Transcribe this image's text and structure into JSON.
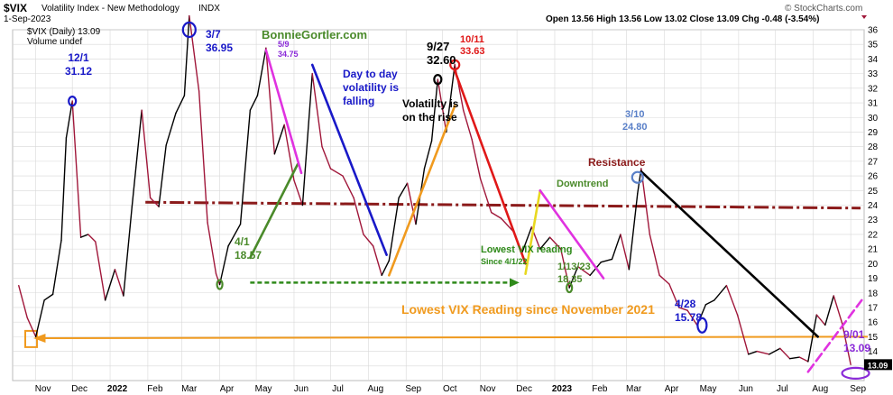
{
  "header": {
    "symbol": "$VIX",
    "name": "Volatility Index - New Methodology",
    "exchange": "INDX",
    "date": "1-Sep-2023",
    "copyright": "© StockCharts.com",
    "ohlc": "Open 13.56  High 13.56  Low 13.02  Close 13.09  Chg -0.48 (-3.54%)",
    "legend_series": "$VIX (Daily) 13.09",
    "legend_volume": "Volume undef"
  },
  "colors": {
    "price_up": "#000000",
    "price_down": "#a0173a",
    "resistance": "#8b1a1a",
    "support": "#f0a020",
    "blue": "#1919c8",
    "green": "#4a8a2a",
    "magenta": "#e032e0",
    "red": "#e01818",
    "orange": "#f09a1e",
    "black": "#000000",
    "dotted": "#2f8a1a",
    "purple": "#8a2ad8",
    "grid": "#d8d8d8"
  },
  "chart_data": {
    "type": "line",
    "title": "$VIX Volatility Index - New Methodology INDX",
    "ylim": [
      12,
      36
    ],
    "y_ticks": [
      13,
      14,
      15,
      16,
      17,
      18,
      19,
      20,
      21,
      22,
      23,
      24,
      25,
      26,
      27,
      28,
      29,
      30,
      31,
      32,
      33,
      34,
      35,
      36
    ],
    "x_ticks": [
      "Nov",
      "Dec",
      "2022",
      "Feb",
      "Mar",
      "Apr",
      "May",
      "Jun",
      "Jul",
      "Aug",
      "Sep",
      "Oct",
      "Nov",
      "Dec",
      "2023",
      "Feb",
      "Mar",
      "Apr",
      "May",
      "Jun",
      "Jul",
      "Aug",
      "Sep"
    ],
    "last_value_label": "13.09",
    "series": [
      {
        "name": "$VIX (Daily)",
        "x": [
          "2021-10-18",
          "2021-10-25",
          "2021-11-01",
          "2021-11-08",
          "2021-11-15",
          "2021-11-22",
          "2021-11-26",
          "2021-12-01",
          "2021-12-08",
          "2021-12-14",
          "2021-12-20",
          "2021-12-28",
          "2022-01-05",
          "2022-01-12",
          "2022-01-19",
          "2022-01-27",
          "2022-02-03",
          "2022-02-10",
          "2022-02-16",
          "2022-02-24",
          "2022-03-03",
          "2022-03-07",
          "2022-03-15",
          "2022-03-22",
          "2022-03-29",
          "2022-04-01",
          "2022-04-08",
          "2022-04-18",
          "2022-04-26",
          "2022-05-02",
          "2022-05-09",
          "2022-05-16",
          "2022-05-24",
          "2022-06-01",
          "2022-06-08",
          "2022-06-16",
          "2022-06-24",
          "2022-07-01",
          "2022-07-11",
          "2022-07-20",
          "2022-07-28",
          "2022-08-05",
          "2022-08-12",
          "2022-08-18",
          "2022-08-26",
          "2022-09-02",
          "2022-09-09",
          "2022-09-16",
          "2022-09-22",
          "2022-09-27",
          "2022-10-04",
          "2022-10-11",
          "2022-10-18",
          "2022-10-25",
          "2022-11-01",
          "2022-11-10",
          "2022-11-18",
          "2022-11-28",
          "2022-12-05",
          "2022-12-13",
          "2022-12-20",
          "2022-12-28",
          "2023-01-06",
          "2023-01-13",
          "2023-01-20",
          "2023-01-30",
          "2023-02-08",
          "2023-02-17",
          "2023-02-24",
          "2023-03-03",
          "2023-03-10",
          "2023-03-13",
          "2023-03-20",
          "2023-03-28",
          "2023-04-05",
          "2023-04-13",
          "2023-04-20",
          "2023-04-28",
          "2023-05-05",
          "2023-05-12",
          "2023-05-22",
          "2023-05-31",
          "2023-06-09",
          "2023-06-16",
          "2023-06-26",
          "2023-07-05",
          "2023-07-13",
          "2023-07-21",
          "2023-07-28",
          "2023-08-04",
          "2023-08-11",
          "2023-08-18",
          "2023-08-25",
          "2023-09-01"
        ],
        "values": [
          18.5,
          16.3,
          15.0,
          17.5,
          17.9,
          21.6,
          28.6,
          31.12,
          21.8,
          22.0,
          21.5,
          17.5,
          19.6,
          17.8,
          23.9,
          30.5,
          24.5,
          23.9,
          28.1,
          30.3,
          31.5,
          36.95,
          31.8,
          22.8,
          19.3,
          18.57,
          21.2,
          22.7,
          30.5,
          31.5,
          34.75,
          27.5,
          29.5,
          25.7,
          24.0,
          33.0,
          28.0,
          26.5,
          26.0,
          24.5,
          22.0,
          21.2,
          19.2,
          20.2,
          24.5,
          25.5,
          22.7,
          26.5,
          28.4,
          32.6,
          29.0,
          33.63,
          30.5,
          28.5,
          25.8,
          23.5,
          23.1,
          22.2,
          20.7,
          22.5,
          21.0,
          21.8,
          21.0,
          18.35,
          19.8,
          19.2,
          20.1,
          20.3,
          22.0,
          19.6,
          24.8,
          26.5,
          22.0,
          19.2,
          18.6,
          17.0,
          16.8,
          15.78,
          17.2,
          17.5,
          18.5,
          16.5,
          13.8,
          14.0,
          13.8,
          14.2,
          13.5,
          13.6,
          13.3,
          16.5,
          15.8,
          17.8,
          15.9,
          13.09
        ]
      }
    ]
  },
  "annotations": {
    "brand": "BonnieGortler.com",
    "a_1201": [
      "12/1",
      "31.12"
    ],
    "a_0307": [
      "3/7",
      "36.95"
    ],
    "a_0509": [
      "5/9",
      "34.75"
    ],
    "a_0927": [
      "9/27",
      "32.60"
    ],
    "a_1011": [
      "10/11",
      "33.63"
    ],
    "a_0310": [
      "3/10",
      "24.80"
    ],
    "a_0401": [
      "4/1",
      "18.57"
    ],
    "a_0113": [
      "1/13/23",
      "18.35"
    ],
    "a_0428": [
      "4/28",
      "15.78"
    ],
    "a_0901": [
      "9/01",
      "13.09"
    ],
    "falling": [
      "Day to day",
      "volatility is",
      "falling"
    ],
    "rising": [
      "Volatility is",
      "on the rise"
    ],
    "resistance": "Resistance",
    "downtrend": "Downtrend",
    "lowest_since": [
      "Lowest VIX reading",
      "Since 4/1/22"
    ],
    "lowest_nov": "Lowest VIX Reading since November 2021"
  }
}
